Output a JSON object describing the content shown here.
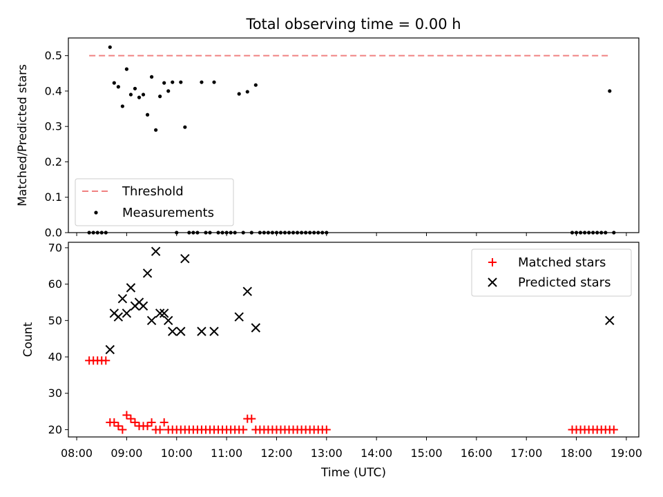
{
  "title": "Total observing time = 0.00 h",
  "colors": {
    "threshold": "#f08080",
    "measurement": "#000000",
    "matched": "#ff0000",
    "predicted": "#000000"
  },
  "chart_data": [
    {
      "type": "scatter",
      "ylabel": "Matched/Predicted stars",
      "ylim": [
        0,
        0.55
      ],
      "xlim": [
        "07:50",
        "19:15"
      ],
      "yticks": [
        "0.0",
        "0.1",
        "0.2",
        "0.3",
        "0.4",
        "0.5"
      ],
      "legend": {
        "placement": "lower-left",
        "entries": [
          "Threshold",
          "Measurements"
        ]
      },
      "threshold": {
        "name": "Threshold",
        "value": 0.5,
        "x_start": "08:15",
        "x_end": "18:40",
        "style": "dashed"
      },
      "series": [
        {
          "name": "Measurements",
          "points": [
            [
              "08:15",
              0
            ],
            [
              "08:20",
              0
            ],
            [
              "08:25",
              0
            ],
            [
              "08:30",
              0
            ],
            [
              "08:35",
              0
            ],
            [
              "08:40",
              0.524
            ],
            [
              "08:45",
              0.423
            ],
            [
              "08:50",
              0.412
            ],
            [
              "08:55",
              0.357
            ],
            [
              "09:00",
              0.462
            ],
            [
              "09:05",
              0.39
            ],
            [
              "09:10",
              0.407
            ],
            [
              "09:15",
              0.382
            ],
            [
              "09:20",
              0.39
            ],
            [
              "09:25",
              0.333
            ],
            [
              "09:30",
              0.44
            ],
            [
              "09:35",
              0.29
            ],
            [
              "09:40",
              0.385
            ],
            [
              "09:45",
              0.423
            ],
            [
              "09:50",
              0.4
            ],
            [
              "09:55",
              0.425
            ],
            [
              "10:00",
              0
            ],
            [
              "10:05",
              0.425
            ],
            [
              "10:10",
              0.298
            ],
            [
              "10:15",
              0
            ],
            [
              "10:20",
              0
            ],
            [
              "10:25",
              0
            ],
            [
              "10:30",
              0.425
            ],
            [
              "10:35",
              0
            ],
            [
              "10:40",
              0
            ],
            [
              "10:45",
              0.425
            ],
            [
              "10:50",
              0
            ],
            [
              "10:55",
              0
            ],
            [
              "11:00",
              0
            ],
            [
              "11:05",
              0
            ],
            [
              "11:10",
              0
            ],
            [
              "11:15",
              0.392
            ],
            [
              "11:20",
              0
            ],
            [
              "11:25",
              0.398
            ],
            [
              "11:30",
              0
            ],
            [
              "11:35",
              0.417
            ],
            [
              "11:40",
              0
            ],
            [
              "11:45",
              0
            ],
            [
              "11:50",
              0
            ],
            [
              "11:55",
              0
            ],
            [
              "12:00",
              0
            ],
            [
              "12:05",
              0
            ],
            [
              "12:10",
              0
            ],
            [
              "12:15",
              0
            ],
            [
              "12:20",
              0
            ],
            [
              "12:25",
              0
            ],
            [
              "12:30",
              0
            ],
            [
              "12:35",
              0
            ],
            [
              "12:40",
              0
            ],
            [
              "12:45",
              0
            ],
            [
              "12:50",
              0
            ],
            [
              "12:55",
              0
            ],
            [
              "13:00",
              0
            ],
            [
              "17:55",
              0
            ],
            [
              "18:00",
              0
            ],
            [
              "18:05",
              0
            ],
            [
              "18:10",
              0
            ],
            [
              "18:15",
              0
            ],
            [
              "18:20",
              0
            ],
            [
              "18:25",
              0
            ],
            [
              "18:30",
              0
            ],
            [
              "18:35",
              0
            ],
            [
              "18:40",
              0.4
            ],
            [
              "18:45",
              0
            ]
          ]
        }
      ]
    },
    {
      "type": "scatter",
      "xlabel": "Time (UTC)",
      "ylabel": "Count",
      "ylim": [
        18,
        71.5
      ],
      "xlim": [
        "07:50",
        "19:15"
      ],
      "yticks": [
        "20",
        "30",
        "40",
        "50",
        "60",
        "70"
      ],
      "xticks": [
        "08:00",
        "09:00",
        "10:00",
        "11:00",
        "12:00",
        "13:00",
        "14:00",
        "15:00",
        "16:00",
        "17:00",
        "18:00",
        "19:00"
      ],
      "legend": {
        "placement": "upper-right",
        "entries": [
          "Matched stars",
          "Predicted stars"
        ]
      },
      "series": [
        {
          "name": "Matched stars",
          "marker": "+",
          "points": [
            [
              "08:15",
              39
            ],
            [
              "08:20",
              39
            ],
            [
              "08:25",
              39
            ],
            [
              "08:30",
              39
            ],
            [
              "08:35",
              39
            ],
            [
              "08:40",
              22
            ],
            [
              "08:45",
              22
            ],
            [
              "08:50",
              21
            ],
            [
              "08:55",
              20
            ],
            [
              "09:00",
              24
            ],
            [
              "09:05",
              23
            ],
            [
              "09:10",
              22
            ],
            [
              "09:15",
              21
            ],
            [
              "09:20",
              21
            ],
            [
              "09:25",
              21
            ],
            [
              "09:30",
              22
            ],
            [
              "09:35",
              20
            ],
            [
              "09:40",
              20
            ],
            [
              "09:45",
              22
            ],
            [
              "09:50",
              20
            ],
            [
              "09:55",
              20
            ],
            [
              "10:00",
              20
            ],
            [
              "10:05",
              20
            ],
            [
              "10:10",
              20
            ],
            [
              "10:15",
              20
            ],
            [
              "10:20",
              20
            ],
            [
              "10:25",
              20
            ],
            [
              "10:30",
              20
            ],
            [
              "10:35",
              20
            ],
            [
              "10:40",
              20
            ],
            [
              "10:45",
              20
            ],
            [
              "10:50",
              20
            ],
            [
              "10:55",
              20
            ],
            [
              "11:00",
              20
            ],
            [
              "11:05",
              20
            ],
            [
              "11:10",
              20
            ],
            [
              "11:15",
              20
            ],
            [
              "11:20",
              20
            ],
            [
              "11:25",
              23
            ],
            [
              "11:30",
              23
            ],
            [
              "11:35",
              20
            ],
            [
              "11:40",
              20
            ],
            [
              "11:45",
              20
            ],
            [
              "11:50",
              20
            ],
            [
              "11:55",
              20
            ],
            [
              "12:00",
              20
            ],
            [
              "12:05",
              20
            ],
            [
              "12:10",
              20
            ],
            [
              "12:15",
              20
            ],
            [
              "12:20",
              20
            ],
            [
              "12:25",
              20
            ],
            [
              "12:30",
              20
            ],
            [
              "12:35",
              20
            ],
            [
              "12:40",
              20
            ],
            [
              "12:45",
              20
            ],
            [
              "12:50",
              20
            ],
            [
              "12:55",
              20
            ],
            [
              "13:00",
              20
            ],
            [
              "17:55",
              20
            ],
            [
              "18:00",
              20
            ],
            [
              "18:05",
              20
            ],
            [
              "18:10",
              20
            ],
            [
              "18:15",
              20
            ],
            [
              "18:20",
              20
            ],
            [
              "18:25",
              20
            ],
            [
              "18:30",
              20
            ],
            [
              "18:35",
              20
            ],
            [
              "18:40",
              20
            ],
            [
              "18:45",
              20
            ]
          ]
        },
        {
          "name": "Predicted stars",
          "marker": "x",
          "points": [
            [
              "08:40",
              42
            ],
            [
              "08:45",
              52
            ],
            [
              "08:50",
              51
            ],
            [
              "08:55",
              56
            ],
            [
              "09:00",
              52
            ],
            [
              "09:05",
              59
            ],
            [
              "09:10",
              54
            ],
            [
              "09:15",
              55
            ],
            [
              "09:20",
              54
            ],
            [
              "09:25",
              63
            ],
            [
              "09:30",
              50
            ],
            [
              "09:35",
              69
            ],
            [
              "09:40",
              52
            ],
            [
              "09:45",
              52
            ],
            [
              "09:50",
              50
            ],
            [
              "09:55",
              47
            ],
            [
              "10:05",
              47
            ],
            [
              "10:10",
              67
            ],
            [
              "10:30",
              47
            ],
            [
              "10:45",
              47
            ],
            [
              "11:15",
              51
            ],
            [
              "11:25",
              58
            ],
            [
              "11:35",
              48
            ],
            [
              "18:40",
              50
            ]
          ]
        }
      ]
    }
  ]
}
